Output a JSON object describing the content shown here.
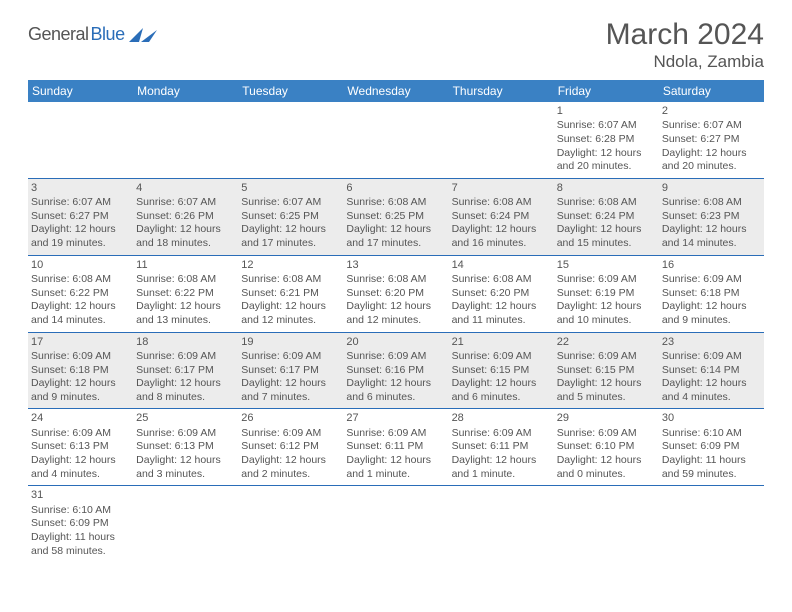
{
  "brand": {
    "text1": "General",
    "text2": "Blue"
  },
  "title": "March 2024",
  "location": "Ndola, Zambia",
  "colors": {
    "header_bg": "#3a81c4",
    "accent": "#2a6db8",
    "text": "#555555",
    "shade": "#ececec",
    "white": "#ffffff"
  },
  "weekdays": [
    "Sunday",
    "Monday",
    "Tuesday",
    "Wednesday",
    "Thursday",
    "Friday",
    "Saturday"
  ],
  "weeks": [
    [
      {
        "empty": true
      },
      {
        "empty": true
      },
      {
        "empty": true
      },
      {
        "empty": true
      },
      {
        "empty": true
      },
      {
        "num": "1",
        "sunrise": "Sunrise: 6:07 AM",
        "sunset": "Sunset: 6:28 PM",
        "daylight": "Daylight: 12 hours and 20 minutes."
      },
      {
        "num": "2",
        "sunrise": "Sunrise: 6:07 AM",
        "sunset": "Sunset: 6:27 PM",
        "daylight": "Daylight: 12 hours and 20 minutes."
      }
    ],
    [
      {
        "num": "3",
        "sunrise": "Sunrise: 6:07 AM",
        "sunset": "Sunset: 6:27 PM",
        "daylight": "Daylight: 12 hours and 19 minutes."
      },
      {
        "num": "4",
        "sunrise": "Sunrise: 6:07 AM",
        "sunset": "Sunset: 6:26 PM",
        "daylight": "Daylight: 12 hours and 18 minutes."
      },
      {
        "num": "5",
        "sunrise": "Sunrise: 6:07 AM",
        "sunset": "Sunset: 6:25 PM",
        "daylight": "Daylight: 12 hours and 17 minutes."
      },
      {
        "num": "6",
        "sunrise": "Sunrise: 6:08 AM",
        "sunset": "Sunset: 6:25 PM",
        "daylight": "Daylight: 12 hours and 17 minutes."
      },
      {
        "num": "7",
        "sunrise": "Sunrise: 6:08 AM",
        "sunset": "Sunset: 6:24 PM",
        "daylight": "Daylight: 12 hours and 16 minutes."
      },
      {
        "num": "8",
        "sunrise": "Sunrise: 6:08 AM",
        "sunset": "Sunset: 6:24 PM",
        "daylight": "Daylight: 12 hours and 15 minutes."
      },
      {
        "num": "9",
        "sunrise": "Sunrise: 6:08 AM",
        "sunset": "Sunset: 6:23 PM",
        "daylight": "Daylight: 12 hours and 14 minutes."
      }
    ],
    [
      {
        "num": "10",
        "sunrise": "Sunrise: 6:08 AM",
        "sunset": "Sunset: 6:22 PM",
        "daylight": "Daylight: 12 hours and 14 minutes."
      },
      {
        "num": "11",
        "sunrise": "Sunrise: 6:08 AM",
        "sunset": "Sunset: 6:22 PM",
        "daylight": "Daylight: 12 hours and 13 minutes."
      },
      {
        "num": "12",
        "sunrise": "Sunrise: 6:08 AM",
        "sunset": "Sunset: 6:21 PM",
        "daylight": "Daylight: 12 hours and 12 minutes."
      },
      {
        "num": "13",
        "sunrise": "Sunrise: 6:08 AM",
        "sunset": "Sunset: 6:20 PM",
        "daylight": "Daylight: 12 hours and 12 minutes."
      },
      {
        "num": "14",
        "sunrise": "Sunrise: 6:08 AM",
        "sunset": "Sunset: 6:20 PM",
        "daylight": "Daylight: 12 hours and 11 minutes."
      },
      {
        "num": "15",
        "sunrise": "Sunrise: 6:09 AM",
        "sunset": "Sunset: 6:19 PM",
        "daylight": "Daylight: 12 hours and 10 minutes."
      },
      {
        "num": "16",
        "sunrise": "Sunrise: 6:09 AM",
        "sunset": "Sunset: 6:18 PM",
        "daylight": "Daylight: 12 hours and 9 minutes."
      }
    ],
    [
      {
        "num": "17",
        "sunrise": "Sunrise: 6:09 AM",
        "sunset": "Sunset: 6:18 PM",
        "daylight": "Daylight: 12 hours and 9 minutes."
      },
      {
        "num": "18",
        "sunrise": "Sunrise: 6:09 AM",
        "sunset": "Sunset: 6:17 PM",
        "daylight": "Daylight: 12 hours and 8 minutes."
      },
      {
        "num": "19",
        "sunrise": "Sunrise: 6:09 AM",
        "sunset": "Sunset: 6:17 PM",
        "daylight": "Daylight: 12 hours and 7 minutes."
      },
      {
        "num": "20",
        "sunrise": "Sunrise: 6:09 AM",
        "sunset": "Sunset: 6:16 PM",
        "daylight": "Daylight: 12 hours and 6 minutes."
      },
      {
        "num": "21",
        "sunrise": "Sunrise: 6:09 AM",
        "sunset": "Sunset: 6:15 PM",
        "daylight": "Daylight: 12 hours and 6 minutes."
      },
      {
        "num": "22",
        "sunrise": "Sunrise: 6:09 AM",
        "sunset": "Sunset: 6:15 PM",
        "daylight": "Daylight: 12 hours and 5 minutes."
      },
      {
        "num": "23",
        "sunrise": "Sunrise: 6:09 AM",
        "sunset": "Sunset: 6:14 PM",
        "daylight": "Daylight: 12 hours and 4 minutes."
      }
    ],
    [
      {
        "num": "24",
        "sunrise": "Sunrise: 6:09 AM",
        "sunset": "Sunset: 6:13 PM",
        "daylight": "Daylight: 12 hours and 4 minutes."
      },
      {
        "num": "25",
        "sunrise": "Sunrise: 6:09 AM",
        "sunset": "Sunset: 6:13 PM",
        "daylight": "Daylight: 12 hours and 3 minutes."
      },
      {
        "num": "26",
        "sunrise": "Sunrise: 6:09 AM",
        "sunset": "Sunset: 6:12 PM",
        "daylight": "Daylight: 12 hours and 2 minutes."
      },
      {
        "num": "27",
        "sunrise": "Sunrise: 6:09 AM",
        "sunset": "Sunset: 6:11 PM",
        "daylight": "Daylight: 12 hours and 1 minute."
      },
      {
        "num": "28",
        "sunrise": "Sunrise: 6:09 AM",
        "sunset": "Sunset: 6:11 PM",
        "daylight": "Daylight: 12 hours and 1 minute."
      },
      {
        "num": "29",
        "sunrise": "Sunrise: 6:09 AM",
        "sunset": "Sunset: 6:10 PM",
        "daylight": "Daylight: 12 hours and 0 minutes."
      },
      {
        "num": "30",
        "sunrise": "Sunrise: 6:10 AM",
        "sunset": "Sunset: 6:09 PM",
        "daylight": "Daylight: 11 hours and 59 minutes."
      }
    ],
    [
      {
        "num": "31",
        "sunrise": "Sunrise: 6:10 AM",
        "sunset": "Sunset: 6:09 PM",
        "daylight": "Daylight: 11 hours and 58 minutes."
      },
      {
        "empty": true
      },
      {
        "empty": true
      },
      {
        "empty": true
      },
      {
        "empty": true
      },
      {
        "empty": true
      },
      {
        "empty": true
      }
    ]
  ]
}
